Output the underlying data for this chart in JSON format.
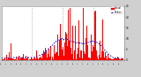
{
  "bg_color": "#d0d0d0",
  "plot_bg": "#ffffff",
  "bar_color": "#ff0000",
  "median_color": "#0000cc",
  "n_minutes": 1440,
  "ylim": [
    0,
    25
  ],
  "yticks": [
    0,
    5,
    10,
    15,
    20,
    25
  ],
  "grid_hours": [
    6,
    12,
    18
  ],
  "legend_actual": "Actual",
  "legend_median": "Median",
  "legend_actual_color": "#ff0000",
  "legend_median_color": "#0000cc"
}
